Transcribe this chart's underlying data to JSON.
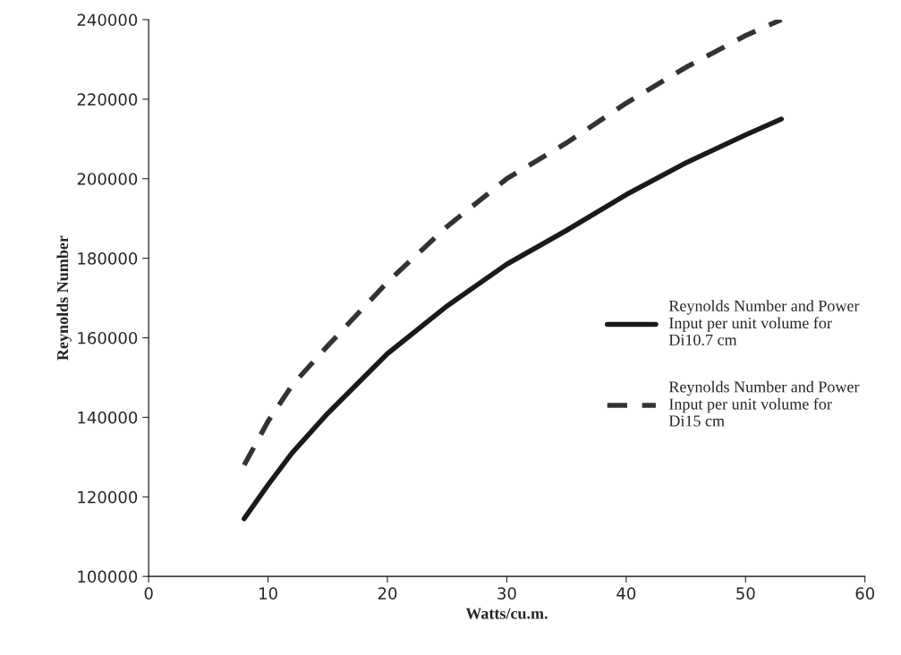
{
  "chart_data": {
    "type": "line",
    "xlabel": "Watts/cu.m.",
    "ylabel": "Reynolds Number",
    "x": [
      8,
      10,
      12,
      15,
      20,
      25,
      30,
      35,
      40,
      45,
      50,
      53
    ],
    "series": [
      {
        "name": "Reynolds Number and Power Input per unit volume for Di10.7 cm",
        "color": "#1a1a1a",
        "line_style": "solid",
        "values": [
          114500,
          123000,
          131000,
          141000,
          156000,
          168000,
          178500,
          187000,
          196000,
          204000,
          211000,
          215000
        ]
      },
      {
        "name": "Reynolds Number and Power Input per unit volume for Di15 cm",
        "color": "#333333",
        "line_style": "dashed",
        "values": [
          128000,
          139000,
          148000,
          158000,
          174000,
          188000,
          200000,
          209000,
          219000,
          228000,
          236000,
          240000
        ]
      }
    ],
    "xlim": [
      0,
      60
    ],
    "xticks": [
      0,
      10,
      20,
      30,
      40,
      50,
      60
    ],
    "ylim": [
      100000,
      240000
    ],
    "yticks": [
      100000,
      120000,
      140000,
      160000,
      180000,
      200000,
      220000,
      240000
    ],
    "grid": false,
    "legend": "right"
  }
}
